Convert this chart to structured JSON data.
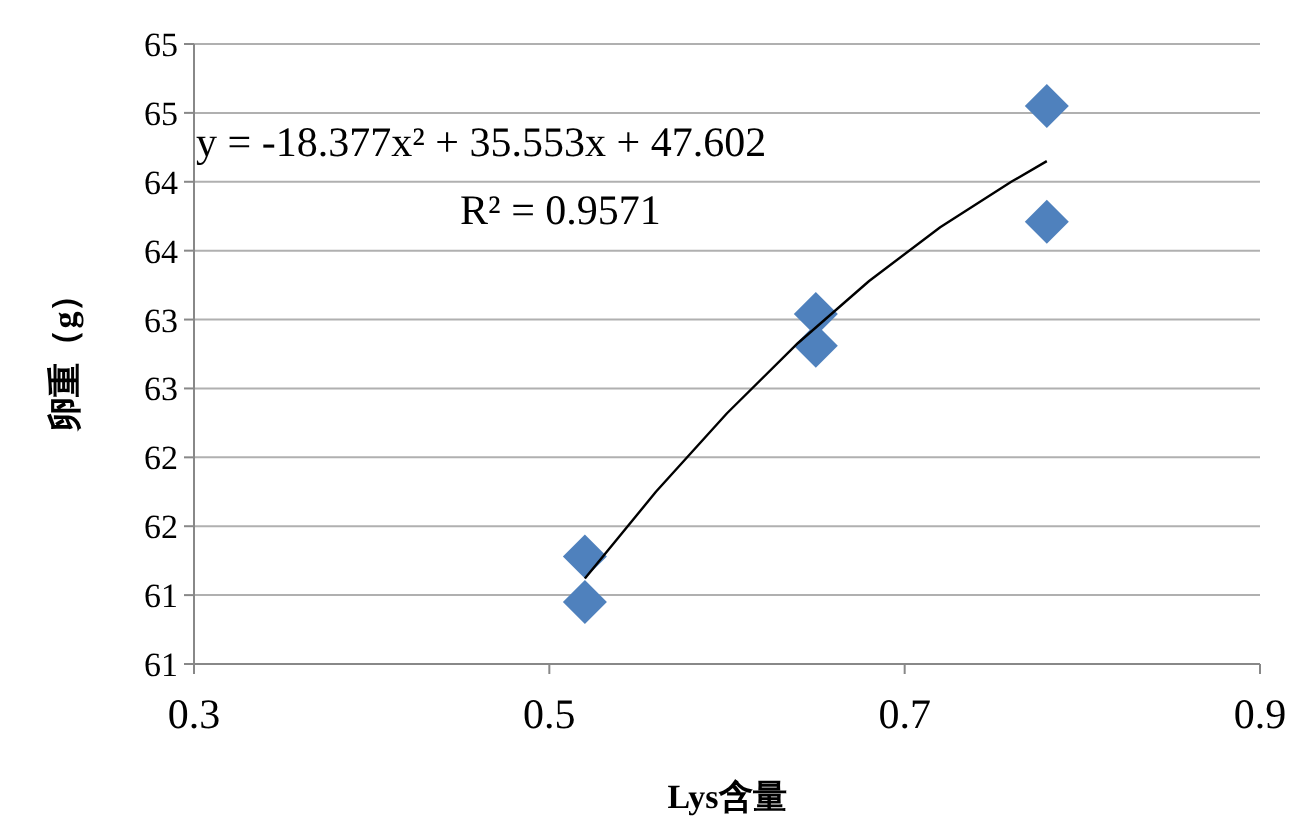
{
  "chart_data": {
    "type": "scatter",
    "xlabel": "Lys含量",
    "ylabel": "卵重（g）",
    "annotations": [
      "y = -18.377x² + 35.553x + 47.602",
      "R² = 0.9571"
    ],
    "xlim": [
      0.3,
      0.9
    ],
    "xticks": [
      0.3,
      0.5,
      0.7,
      0.9
    ],
    "ylim": [
      60.5,
      65
    ],
    "yticks": [
      {
        "value": 60.5,
        "label": "61"
      },
      61,
      {
        "value": 61.5,
        "label": "62"
      },
      62,
      {
        "value": 62.5,
        "label": "63"
      },
      63,
      {
        "value": 63.5,
        "label": "64"
      },
      64,
      {
        "value": 64.5,
        "label": "65"
      },
      65
    ],
    "grid": "y",
    "series": [
      {
        "type": "scatter",
        "marker": "diamond",
        "color": "#4f81bd",
        "x": [
          0.52,
          0.52,
          0.65,
          0.65,
          0.78,
          0.78
        ],
        "values": [
          61.28,
          60.95,
          63.04,
          62.81,
          64.55,
          63.71
        ]
      },
      {
        "type": "line",
        "color": "#000000",
        "line_style": "solid",
        "x": [
          0.52,
          0.56,
          0.6,
          0.64,
          0.68,
          0.72,
          0.76,
          0.78
        ],
        "values": [
          61.12,
          61.75,
          62.32,
          62.83,
          63.28,
          63.67,
          64.0,
          64.15
        ]
      }
    ]
  }
}
